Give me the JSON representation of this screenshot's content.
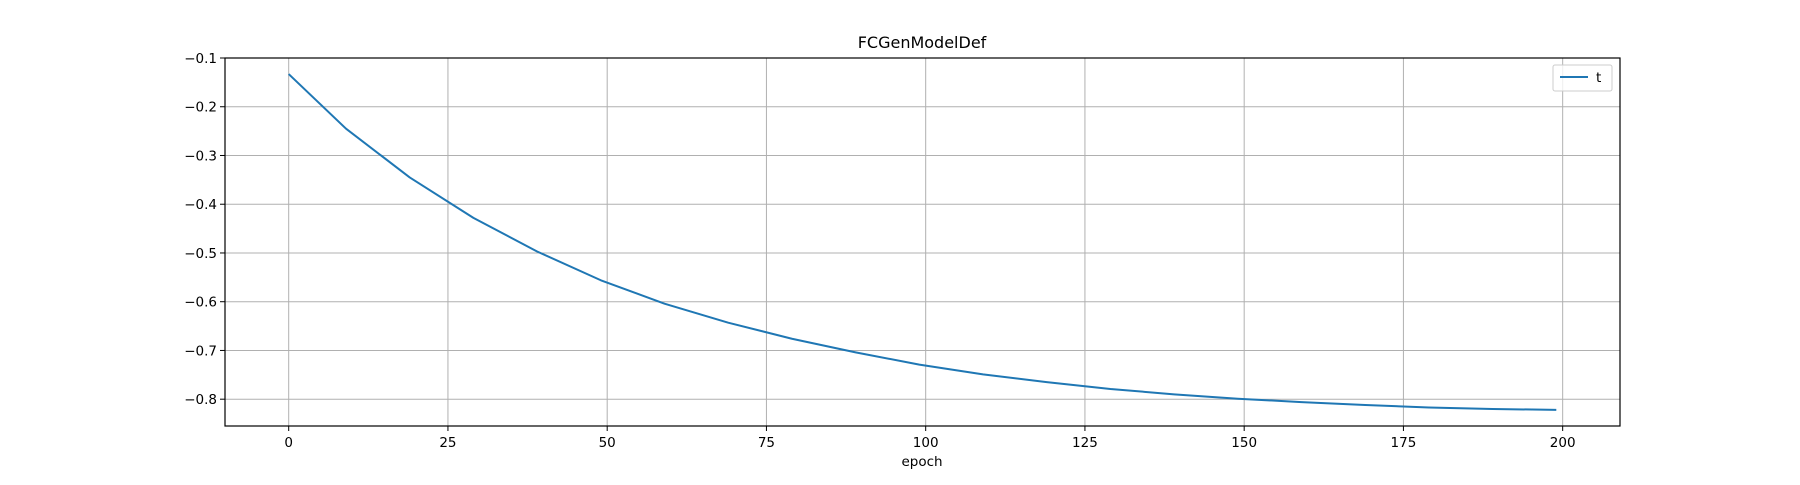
{
  "chart_data": {
    "type": "line",
    "title": "FCGenModelDef",
    "xlabel": "epoch",
    "ylabel": "",
    "xlim": [
      -10,
      209
    ],
    "ylim": [
      -0.855,
      -0.1
    ],
    "xticks": [
      0,
      25,
      50,
      75,
      100,
      125,
      150,
      175,
      200
    ],
    "yticks": [
      -0.8,
      -0.7,
      -0.6,
      -0.5,
      -0.4,
      -0.3,
      -0.2,
      -0.1
    ],
    "xtick_labels": [
      "0",
      "25",
      "50",
      "75",
      "100",
      "125",
      "150",
      "175",
      "200"
    ],
    "ytick_labels": [
      "−0.8",
      "−0.7",
      "−0.6",
      "−0.5",
      "−0.4",
      "−0.3",
      "−0.2",
      "−0.1"
    ],
    "grid": true,
    "legend": {
      "position": "top-right",
      "entries": [
        "t"
      ]
    },
    "series": [
      {
        "name": "t",
        "color": "#1f77b4",
        "x": [
          0,
          9,
          19,
          29,
          39,
          49,
          59,
          69,
          79,
          89,
          99,
          109,
          119,
          129,
          139,
          149,
          159,
          169,
          179,
          189,
          199
        ],
        "y": [
          -0.133,
          -0.245,
          -0.345,
          -0.428,
          -0.497,
          -0.556,
          -0.604,
          -0.643,
          -0.676,
          -0.704,
          -0.729,
          -0.749,
          -0.765,
          -0.779,
          -0.79,
          -0.799,
          -0.806,
          -0.812,
          -0.817,
          -0.82,
          -0.822
        ]
      }
    ]
  }
}
